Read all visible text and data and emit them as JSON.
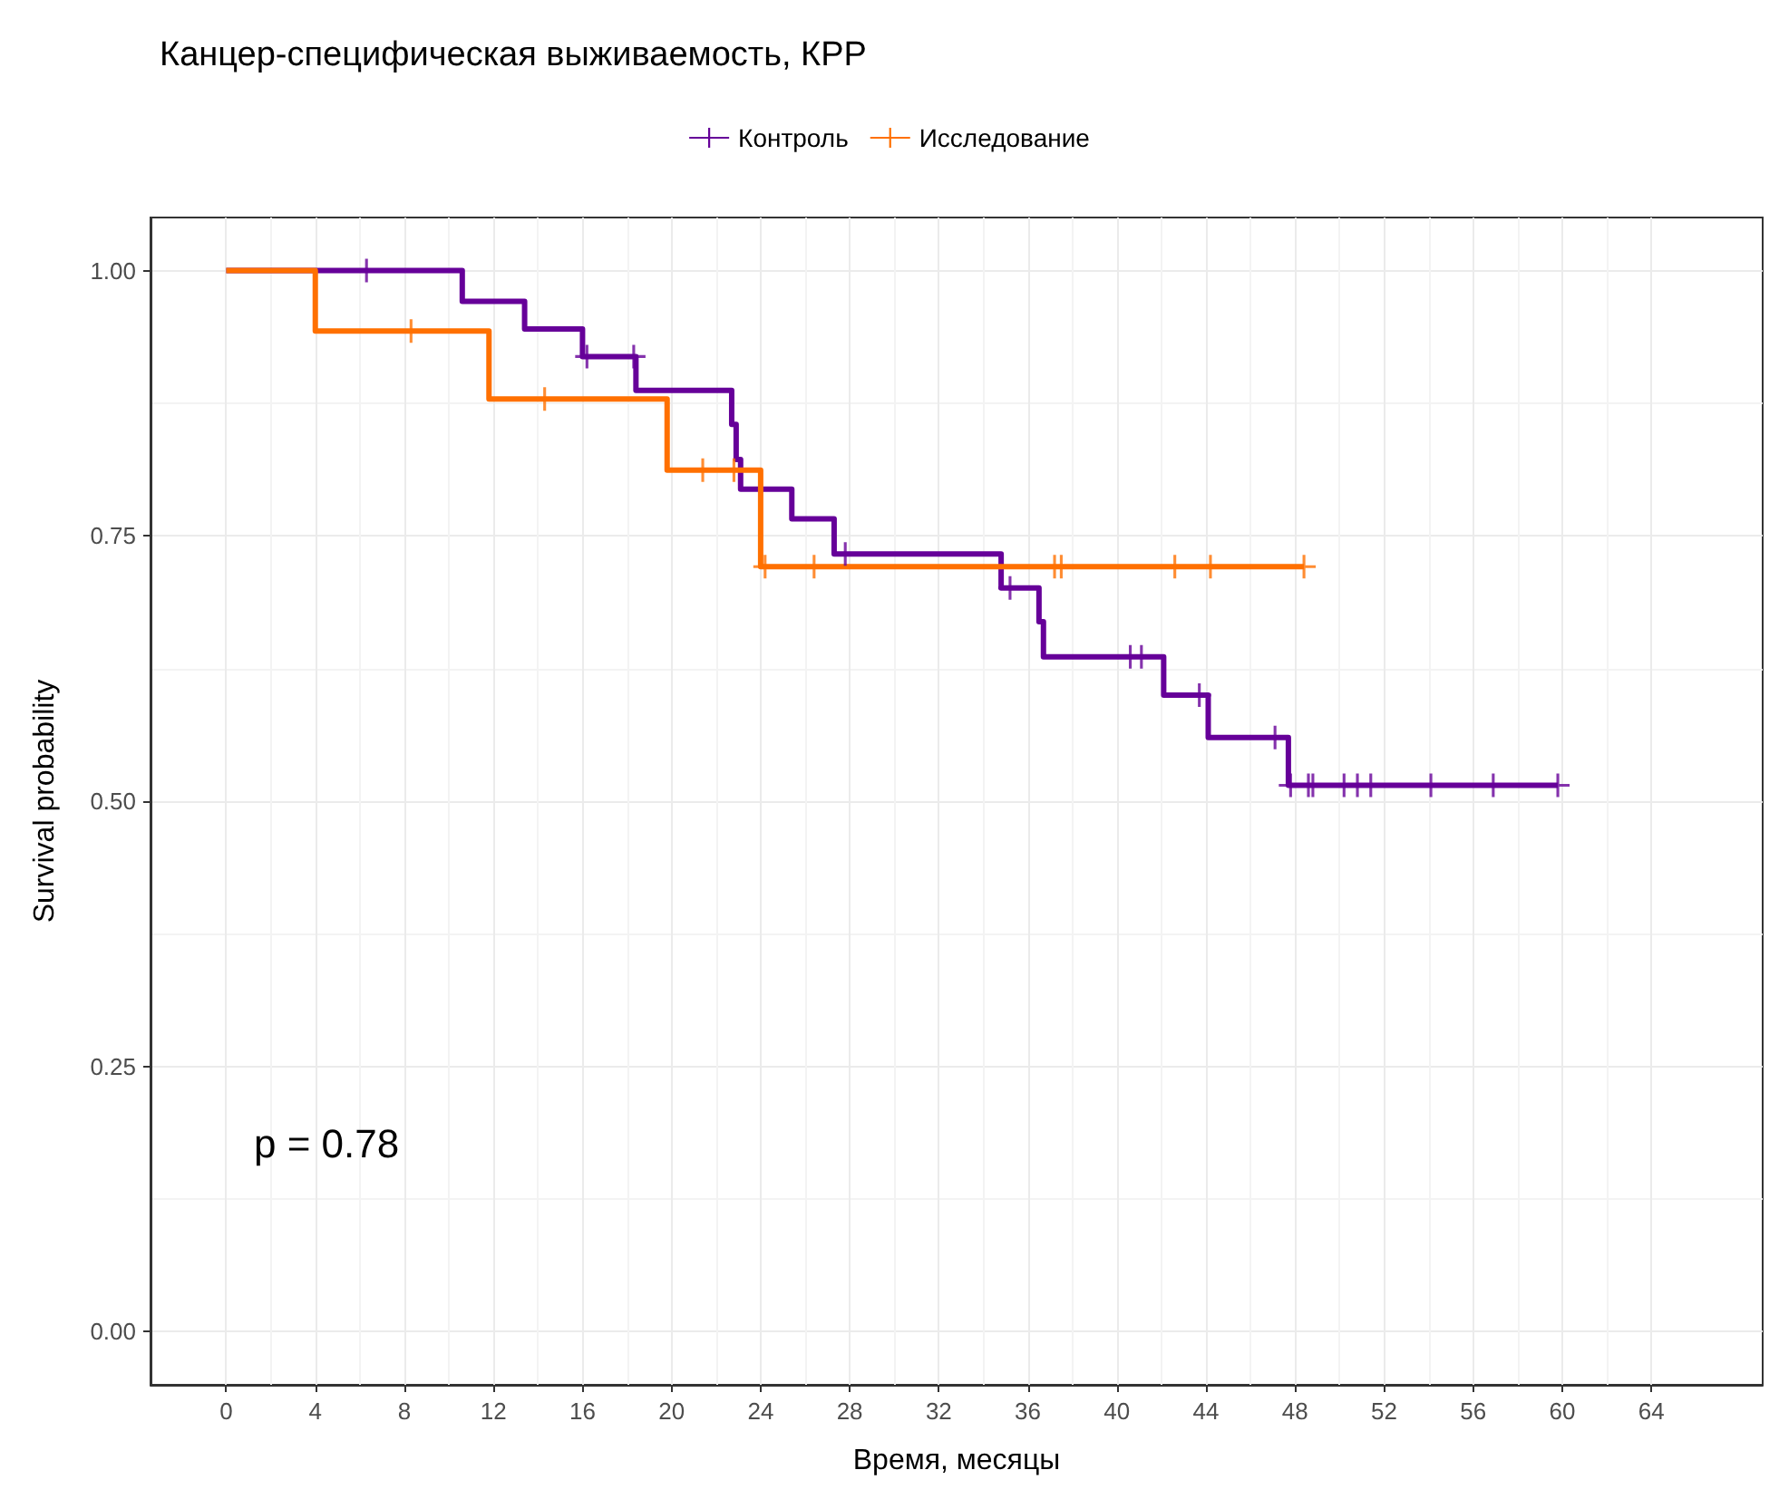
{
  "chart_data": {
    "type": "step",
    "title": "Канцер-специфическая выживаемость, КРР",
    "xlabel": "Время, месяцы",
    "ylabel": "Survival probability",
    "annotations": [
      "p = 0.78"
    ],
    "xlim": [
      -3.4,
      69
    ],
    "ylim": [
      -0.05,
      1.05
    ],
    "xticks": [
      0,
      4,
      8,
      12,
      16,
      20,
      24,
      28,
      32,
      36,
      40,
      44,
      48,
      52,
      56,
      60,
      64
    ],
    "yticks": [
      {
        "value": 0,
        "label": "0.00"
      },
      {
        "value": 0.25,
        "label": "0.25"
      },
      {
        "value": 0.5,
        "label": "0.50"
      },
      {
        "value": 0.75,
        "label": "0.75"
      },
      {
        "value": 1,
        "label": "1.00"
      }
    ],
    "grid": true,
    "legend": "top",
    "line_style": "solid",
    "series": [
      {
        "name": "Контроль",
        "color": "#660099",
        "x": [
          0,
          10.6,
          13.4,
          16.0,
          18.4,
          22.7,
          22.9,
          23.1,
          25.4,
          27.3,
          34.8,
          36.5,
          36.7,
          42.1,
          44.1,
          47.7,
          59.8
        ],
        "values": [
          1,
          0.971,
          0.945,
          0.919,
          0.887,
          0.855,
          0.822,
          0.794,
          0.766,
          0.733,
          0.701,
          0.669,
          0.636,
          0.6,
          0.56,
          0.515,
          0.515
        ]
      },
      {
        "name": "Исследование",
        "color": "#ff7000",
        "x": [
          0,
          4.0,
          11.8,
          19.8,
          24.0,
          48.4
        ],
        "values": [
          1,
          0.943,
          0.879,
          0.812,
          0.721,
          0.721
        ]
      },
      {
        "type": "scatter",
        "marker": "cross",
        "color": "#660099",
        "x": [
          6.3,
          16.2,
          18.3,
          27.8,
          35.2,
          40.6,
          41.1,
          43.7,
          47.1,
          47.8,
          48.6,
          48.8,
          50.2,
          50.8,
          51.4,
          54.1,
          56.9,
          59.8
        ],
        "values": [
          1,
          0.919,
          0.919,
          0.733,
          0.701,
          0.636,
          0.636,
          0.6,
          0.56,
          0.515,
          0.515,
          0.515,
          0.515,
          0.515,
          0.515,
          0.515,
          0.515,
          0.515
        ]
      },
      {
        "type": "scatter",
        "marker": "cross",
        "color": "#ff7000",
        "x": [
          8.3,
          14.3,
          21.4,
          22.8,
          24.2,
          26.4,
          37.2,
          37.5,
          42.6,
          44.2,
          48.4
        ],
        "values": [
          0.943,
          0.879,
          0.812,
          0.812,
          0.721,
          0.721,
          0.721,
          0.721,
          0.721,
          0.721,
          0.721
        ]
      }
    ]
  }
}
